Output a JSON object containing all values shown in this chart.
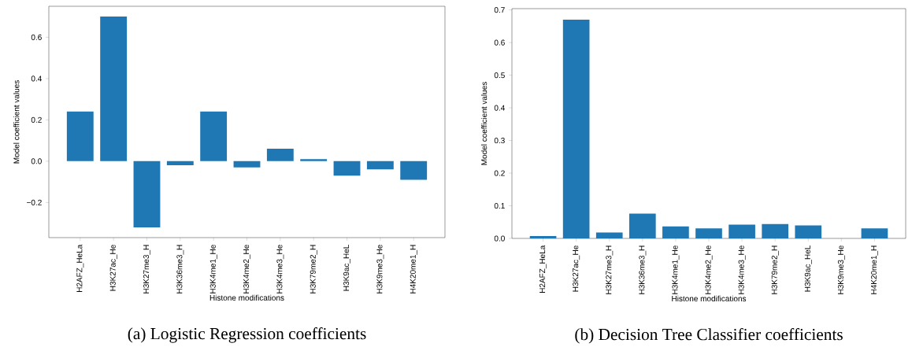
{
  "chart_data": [
    {
      "type": "bar",
      "title": "(a)  Logistic Regression coefficients",
      "xlabel": "Histone modifications",
      "ylabel": "Model coefficient values",
      "color": "#1f77b4",
      "categories": [
        "H2AFZ_HeLa",
        "H3K27ac_He",
        "H3K27me3_H",
        "H3K36me3_H",
        "H3K4me1_He",
        "H3K4me2_He",
        "H3K4me3_He",
        "H3K79me2_H",
        "H3K9ac_HeL",
        "H3K9me3_He",
        "H4K20me1_H"
      ],
      "values": [
        0.24,
        0.7,
        -0.32,
        -0.02,
        0.24,
        -0.03,
        0.06,
        0.01,
        -0.07,
        -0.04,
        -0.09
      ],
      "ylim": [
        -0.37,
        0.75
      ],
      "yticks": [
        {
          "value": -0.2,
          "label": "−0.2"
        },
        {
          "value": 0.0,
          "label": "0.0"
        },
        {
          "value": 0.2,
          "label": "0.2"
        },
        {
          "value": 0.4,
          "label": "0.4"
        },
        {
          "value": 0.6,
          "label": "0.6"
        }
      ]
    },
    {
      "type": "bar",
      "title": "(b)  Decision Tree Classifier coefficients",
      "xlabel": "Histone modifications",
      "ylabel": "Model coefficient values",
      "color": "#1f77b4",
      "categories": [
        "H2AFZ_HeLa",
        "H3K27ac_He",
        "H3K27me3_H",
        "H3K36me3_H",
        "H3K4me1_He",
        "H3K4me2_He",
        "H3K4me3_He",
        "H3K79me2_H",
        "H3K9ac_HeL",
        "H3K9me3_He",
        "H4K20me1_H"
      ],
      "values": [
        0.007,
        0.67,
        0.018,
        0.076,
        0.037,
        0.031,
        0.042,
        0.044,
        0.04,
        0.0,
        0.031
      ],
      "ylim": [
        0.0,
        0.704
      ],
      "yticks": [
        {
          "value": 0.0,
          "label": "0.0"
        },
        {
          "value": 0.1,
          "label": "0.1"
        },
        {
          "value": 0.2,
          "label": "0.2"
        },
        {
          "value": 0.3,
          "label": "0.3"
        },
        {
          "value": 0.4,
          "label": "0.4"
        },
        {
          "value": 0.5,
          "label": "0.5"
        },
        {
          "value": 0.6,
          "label": "0.6"
        },
        {
          "value": 0.7,
          "label": "0.7"
        }
      ]
    }
  ]
}
